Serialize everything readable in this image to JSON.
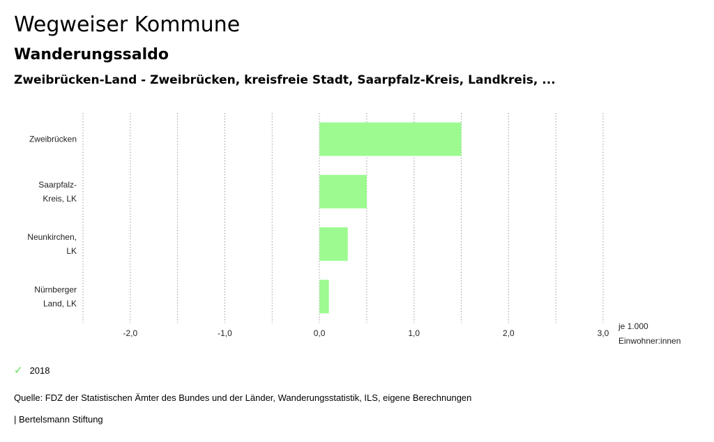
{
  "header": {
    "title": "Wegweiser Kommune",
    "subtitle": "Wanderungssaldo",
    "region": "Zweibrücken-Land - Zweibrücken, kreisfreie Stadt, Saarpfalz-Kreis, Landkreis, ..."
  },
  "chart_data": {
    "type": "bar",
    "orientation": "horizontal",
    "categories": [
      [
        "Zweibrücken"
      ],
      [
        "Saarpfalz-",
        "Kreis, LK"
      ],
      [
        "Neunkirchen,",
        "LK"
      ],
      [
        "Nürnberger",
        "Land, LK"
      ]
    ],
    "series": [
      {
        "name": "2018",
        "values": [
          1.5,
          0.5,
          0.3,
          0.1
        ],
        "color": "#9cfa90"
      }
    ],
    "xlim": [
      -2.5,
      3.0
    ],
    "xticks": [
      -2.0,
      -1.0,
      0.0,
      1.0,
      2.0,
      3.0
    ],
    "tick_labels": [
      "-2,0",
      "-1,0",
      "0,0",
      "1,0",
      "2,0",
      "3,0"
    ],
    "xlabel": [
      "je 1.000",
      "Einwohner:innen"
    ],
    "grid": "vertical dotted",
    "legend_position": "bottom-left"
  },
  "legend": {
    "label": "2018",
    "icon": "check-icon"
  },
  "footer": {
    "source": "Quelle: FDZ der Statistischen Ämter des Bundes und der Länder, Wanderungsstatistik, ILS, eigene Berechnungen",
    "brand": "| Bertelsmann Stiftung"
  }
}
